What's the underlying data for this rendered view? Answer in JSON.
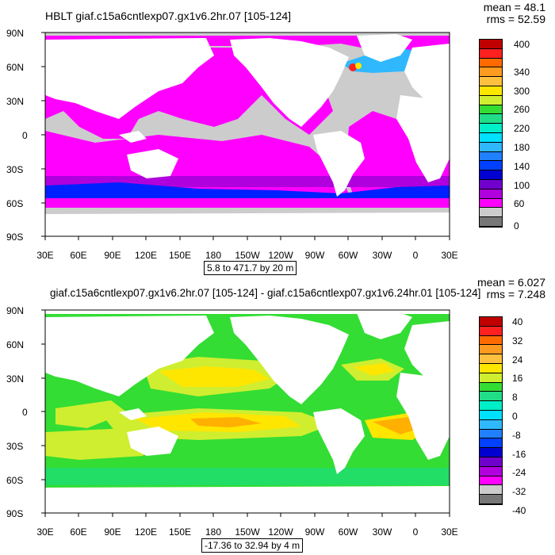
{
  "panel1": {
    "title": "HBLT giaf.c15a6cntlexp07.gx1v6.2hr.07 [105-124]",
    "mean": "mean = 48.1",
    "rms": "rms = 52.59",
    "range": "5.8 to 471.7 by 20 m",
    "colorbar_labels": [
      "400",
      "340",
      "300",
      "260",
      "220",
      "180",
      "140",
      "100",
      "60",
      "0"
    ],
    "colorbar_colors": [
      "#c00000",
      "#ff2020",
      "#ff6a00",
      "#ff9a20",
      "#ffc040",
      "#ffe600",
      "#cfee30",
      "#33dd33",
      "#22dd88",
      "#00eec8",
      "#00e0ff",
      "#30b8ff",
      "#2080ff",
      "#0040ff",
      "#0000d0",
      "#7000cc",
      "#b000dd",
      "#ff00ff",
      "#cccccc",
      "#777777"
    ]
  },
  "panel2": {
    "title": "giaf.c15a6cntlexp07.gx1v6.2hr.07 [105-124] - giaf.c15a6cntlexp07.gx1v6.24hr.01 [105-124]",
    "mean": "mean = 6.027",
    "rms": "rms = 7.248",
    "range": "-17.36 to 32.94 by 4 m",
    "colorbar_labels": [
      "40",
      "32",
      "24",
      "16",
      "8",
      "0",
      "-8",
      "-16",
      "-24",
      "-32",
      "-40"
    ],
    "colorbar_colors": [
      "#c00000",
      "#ff2020",
      "#ff6a00",
      "#ff9a20",
      "#ffc040",
      "#ffe600",
      "#cfee30",
      "#33dd33",
      "#22dd88",
      "#00eec8",
      "#00e0ff",
      "#30b8ff",
      "#2080ff",
      "#0040ff",
      "#0000d0",
      "#7000cc",
      "#b000dd",
      "#ff00ff",
      "#cccccc",
      "#777777"
    ]
  },
  "axes": {
    "lat_labels": [
      "90N",
      "60N",
      "30N",
      "0",
      "30S",
      "60S",
      "90S"
    ],
    "lon_labels": [
      "30E",
      "60E",
      "90E",
      "120E",
      "150E",
      "180",
      "150W",
      "120W",
      "90W",
      "60W",
      "30W",
      "0",
      "30E"
    ]
  },
  "colors": {
    "land": "#ffffff",
    "ice_gray": "#cccccc",
    "magenta": "#ff00ff",
    "purple": "#b000dd",
    "blue": "#0000ff",
    "green": "#33dd33",
    "lime": "#9af000",
    "yellow": "#ffe600",
    "orange": "#ffb000"
  }
}
